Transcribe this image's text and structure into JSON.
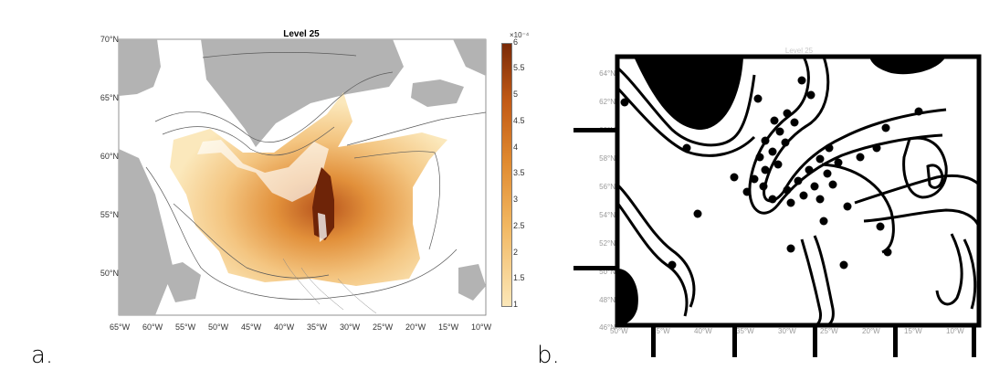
{
  "panel_a": {
    "letter": "a.",
    "title": "Level 25",
    "lat_ticks": [
      "70°N",
      "65°N",
      "60°N",
      "55°N",
      "50°N"
    ],
    "lon_ticks": [
      "65°W",
      "60°W",
      "55°W",
      "50°W",
      "45°W",
      "40°W",
      "35°W",
      "30°W",
      "25°W",
      "20°W",
      "15°W",
      "10°W"
    ],
    "colorbar": {
      "exponent": "×10⁻⁴",
      "ticks": [
        "6",
        "5.5",
        "5",
        "4.5",
        "4",
        "3.5",
        "3",
        "2.5",
        "2",
        "1.5",
        "1"
      ],
      "color_high": "#7a2a08",
      "color_mid": "#e08a30",
      "color_low": "#fbe7b8"
    },
    "land_color": "#b3b3b3"
  },
  "panel_b": {
    "letter": "b.",
    "title": "Level 25",
    "lat_ticks": [
      "64°N",
      "62°N",
      "60°N",
      "58°N",
      "56°N",
      "54°N",
      "52°N",
      "50°N",
      "48°N",
      "46°N"
    ],
    "lon_ticks": [
      "50°W",
      "45°W",
      "40°W",
      "35°W",
      "30°W",
      "25°W",
      "20°W",
      "15°W",
      "10°W"
    ]
  }
}
